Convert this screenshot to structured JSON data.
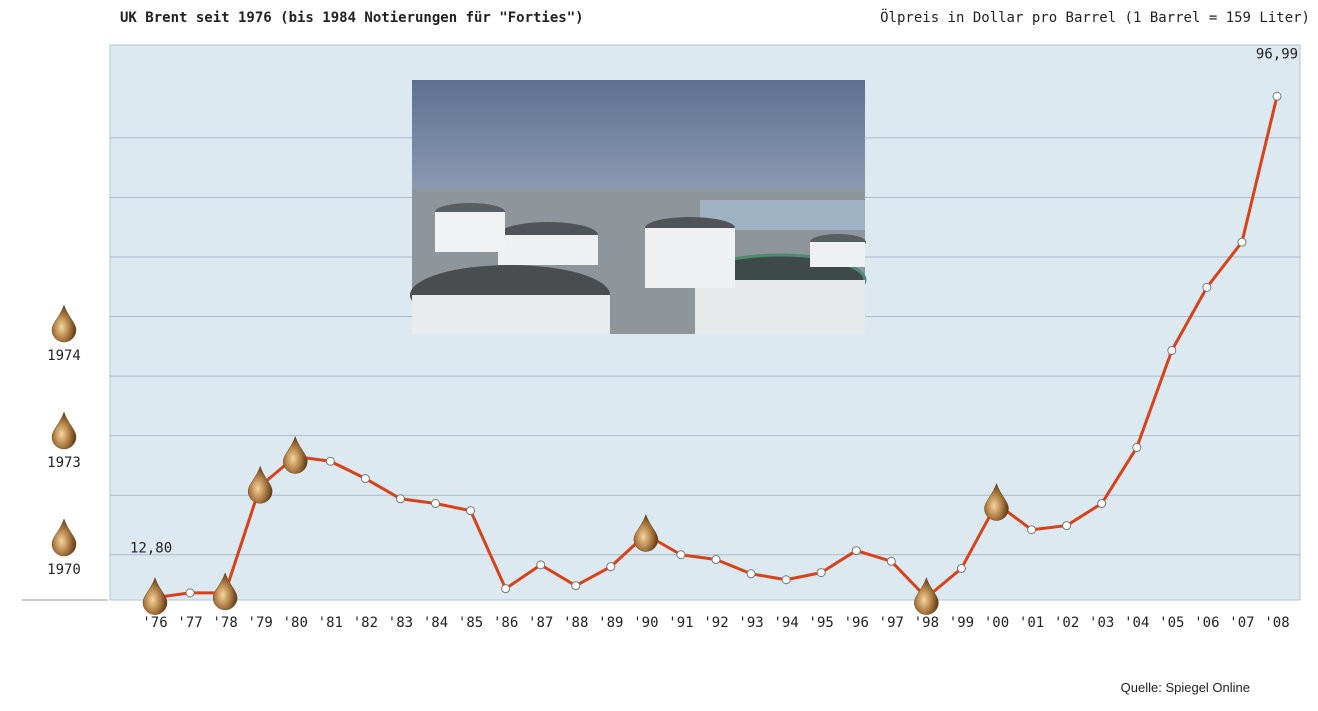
{
  "chart_data": {
    "type": "line",
    "title": "UK Brent seit 1976 (bis 1984 Notierungen für \"Forties\")",
    "subtitle": "Ölpreis in Dollar pro Barrel (1 Barrel = 159 Liter)",
    "source": "Quelle: Spiegel Online",
    "categories": [
      "'76",
      "'77",
      "'78",
      "'79",
      "'80",
      "'81",
      "'82",
      "'83",
      "'84",
      "'85",
      "'86",
      "'87",
      "'88",
      "'89",
      "'90",
      "'91",
      "'92",
      "'93",
      "'94",
      "'95",
      "'96",
      "'97",
      "'98",
      "'99",
      "'00",
      "'01",
      "'02",
      "'03",
      "'04",
      "'05",
      "'06",
      "'07",
      "'08"
    ],
    "series": [
      {
        "color": "#d8421a",
        "values": [
          12.8,
          13.6,
          13.6,
          31.5,
          36.5,
          35.7,
          32.8,
          29.4,
          28.6,
          27.4,
          14.3,
          18.3,
          14.8,
          18.0,
          23.4,
          20.0,
          19.2,
          16.8,
          15.8,
          17.0,
          20.7,
          18.9,
          12.8,
          17.7,
          28.6,
          24.2,
          24.9,
          28.6,
          38.0,
          54.3,
          64.9,
          72.5,
          96.99
        ],
        "value_labels": [
          "12,80",
          null,
          null,
          null,
          null,
          null,
          null,
          null,
          null,
          null,
          null,
          null,
          null,
          null,
          null,
          null,
          null,
          null,
          null,
          null,
          null,
          null,
          null,
          null,
          null,
          null,
          null,
          null,
          null,
          null,
          null,
          null,
          "96,99"
        ]
      }
    ],
    "drop_marks": [
      "'76",
      "'78",
      "'79",
      "'80",
      "'90",
      "'98",
      "'00"
    ],
    "side_labels": [
      "1974",
      "1973",
      "1970"
    ],
    "ylim": [
      12.4,
      105.6
    ],
    "yticks": [
      20,
      30,
      40,
      50,
      60,
      70,
      80,
      90
    ],
    "grid": true
  }
}
